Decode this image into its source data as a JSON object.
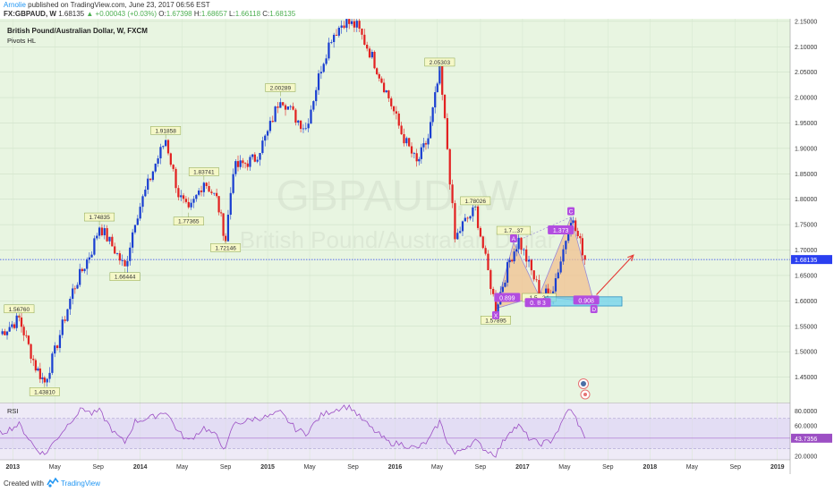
{
  "header": {
    "author": "Arnolie",
    "published_text": "published on TradingView.com, June 23, 2017 06:56 EST",
    "symbol": "FX:GBPAUD, W",
    "last": "1.68135",
    "change": "+0.00043 (+0.03%)",
    "o_label": "O:",
    "o_val": "1.67398",
    "h_label": "H:",
    "h_val": "1.68657",
    "l_label": "L:",
    "l_val": "1.66118",
    "c_label": "C:",
    "c_val": "1.68135"
  },
  "footer": {
    "created": "Created with",
    "brand": "TradingView"
  },
  "colors": {
    "bg": "#e8f5e1",
    "rsi_bg": "#eeeaf7",
    "up": "#1a3fd1",
    "down": "#e22222",
    "price_line": "#2a3ff0",
    "rsi_line": "#9c4fc4",
    "pattern_fill": "#f2c08f",
    "pattern_stroke": "#9b8ad6",
    "target_box": "#66d0ef",
    "arrow": "#e53935",
    "pivot_label_bg": "#f5f8c8",
    "pivot_label_border": "#8aa34a",
    "purple_label": "#b24de0",
    "price_tag_bg": "#2a3ff0"
  },
  "chart_data": {
    "type": "candlestick",
    "title": "British Pound/Australian Dollar, W, FXCM",
    "indicator": "Pivots HL",
    "watermark_symbol": "GBPAUD, W",
    "watermark_name": "British Pound/Australian Dollar",
    "y_range": [
      1.4,
      2.155
    ],
    "y_ticks": [
      "2.15000",
      "2.10000",
      "2.05000",
      "2.00000",
      "1.95000",
      "1.90000",
      "1.85000",
      "1.80000",
      "1.75000",
      "1.70000",
      "1.65000",
      "1.60000",
      "1.55000",
      "1.50000",
      "1.45000"
    ],
    "x_labels": [
      "2013",
      "May",
      "Sep",
      "2014",
      "May",
      "Sep",
      "2015",
      "May",
      "Sep",
      "2016",
      "May",
      "Sep",
      "2017",
      "May",
      "Sep",
      "2018",
      "May",
      "Sep",
      "2019"
    ],
    "x_label_dates": [
      2013.0,
      2013.33,
      2013.67,
      2014.0,
      2014.33,
      2014.67,
      2015.0,
      2015.33,
      2015.67,
      2016.0,
      2016.33,
      2016.67,
      2017.0,
      2017.33,
      2017.67,
      2018.0,
      2018.33,
      2018.67,
      2019.0
    ],
    "anchors": [
      [
        2012.9,
        1.535
      ],
      [
        2013.05,
        1.565
      ],
      [
        2013.18,
        1.47
      ],
      [
        2013.25,
        1.44
      ],
      [
        2013.33,
        1.5
      ],
      [
        2013.47,
        1.62
      ],
      [
        2013.62,
        1.7
      ],
      [
        2013.68,
        1.748
      ],
      [
        2013.8,
        1.7
      ],
      [
        2013.88,
        1.664
      ],
      [
        2013.96,
        1.76
      ],
      [
        2014.12,
        1.87
      ],
      [
        2014.2,
        1.918
      ],
      [
        2014.3,
        1.81
      ],
      [
        2014.38,
        1.773
      ],
      [
        2014.5,
        1.837
      ],
      [
        2014.6,
        1.8
      ],
      [
        2014.67,
        1.721
      ],
      [
        2014.73,
        1.86
      ],
      [
        2014.9,
        1.88
      ],
      [
        2015.0,
        1.93
      ],
      [
        2015.1,
        2.003
      ],
      [
        2015.22,
        1.96
      ],
      [
        2015.3,
        1.94
      ],
      [
        2015.42,
        2.06
      ],
      [
        2015.5,
        2.12
      ],
      [
        2015.6,
        2.15
      ],
      [
        2015.7,
        2.14
      ],
      [
        2015.82,
        2.08
      ],
      [
        2015.95,
        2.0
      ],
      [
        2016.05,
        1.93
      ],
      [
        2016.17,
        1.87
      ],
      [
        2016.26,
        1.92
      ],
      [
        2016.35,
        2.053
      ],
      [
        2016.41,
        1.9
      ],
      [
        2016.47,
        1.72
      ],
      [
        2016.53,
        1.75
      ],
      [
        2016.63,
        1.78
      ],
      [
        2016.71,
        1.68
      ],
      [
        2016.79,
        1.585
      ],
      [
        2016.9,
        1.68
      ],
      [
        2016.97,
        1.72
      ],
      [
        2017.05,
        1.67
      ],
      [
        2017.13,
        1.62
      ],
      [
        2017.22,
        1.61
      ],
      [
        2017.3,
        1.68
      ],
      [
        2017.38,
        1.765
      ],
      [
        2017.47,
        1.7
      ],
      [
        2017.49,
        1.681
      ]
    ],
    "pivots": [
      {
        "t": 2013.05,
        "v": 1.5676,
        "label": "1.56760",
        "pos": "above"
      },
      {
        "t": 2013.25,
        "v": 1.4381,
        "label": "1.43810",
        "pos": "below"
      },
      {
        "t": 2013.68,
        "v": 1.74835,
        "label": "1.74835",
        "pos": "above"
      },
      {
        "t": 2013.88,
        "v": 1.66444,
        "label": "1.66444",
        "pos": "below"
      },
      {
        "t": 2014.2,
        "v": 1.91858,
        "label": "1.91858",
        "pos": "above"
      },
      {
        "t": 2014.38,
        "v": 1.77365,
        "label": "1.77365",
        "pos": "below"
      },
      {
        "t": 2014.5,
        "v": 1.83741,
        "label": "1.83741",
        "pos": "above"
      },
      {
        "t": 2014.67,
        "v": 1.72146,
        "label": "1.72146",
        "pos": "below"
      },
      {
        "t": 2015.1,
        "v": 2.00289,
        "label": "2.00289",
        "pos": "above"
      },
      {
        "t": 2016.35,
        "v": 2.05303,
        "label": "2.05303",
        "pos": "above"
      },
      {
        "t": 2016.63,
        "v": 1.78026,
        "label": "1.78026",
        "pos": "above"
      },
      {
        "t": 2016.79,
        "v": 1.57895,
        "label": "1.57895",
        "pos": "below"
      }
    ],
    "pattern_points": [
      {
        "name": "X",
        "t": 2016.79,
        "v": 1.585
      },
      {
        "name": "A",
        "t": 2016.93,
        "v": 1.715
      },
      {
        "name": "B",
        "t": 2017.13,
        "v": 1.61
      },
      {
        "name": "C",
        "t": 2017.38,
        "v": 1.765
      },
      {
        "name": "D",
        "t": 2017.56,
        "v": 1.597
      }
    ],
    "pattern_labels": [
      {
        "text": "0.899",
        "t": 2016.88,
        "v": 1.605
      },
      {
        "text": "1.373",
        "t": 2017.3,
        "v": 1.738
      },
      {
        "text": "0.763",
        "t": 2017.12,
        "v": 1.595
      },
      {
        "text": "0.908",
        "t": 2017.5,
        "v": 1.6
      }
    ],
    "partial_labels": [
      {
        "text": "1.7...37",
        "t": 2016.93,
        "v": 1.722
      },
      {
        "text": "1.5...24",
        "t": 2017.13,
        "v": 1.59
      }
    ],
    "target_box": {
      "t0": 2017.18,
      "t1": 2017.78,
      "v0": 1.59,
      "v1": 1.608
    },
    "arrow": {
      "t0": 2017.58,
      "v0": 1.612,
      "t1": 2017.87,
      "v1": 1.69
    },
    "current_price": 1.68135,
    "current_price_label": "1.68135",
    "rsi": {
      "label": "RSI",
      "range": [
        15,
        90
      ],
      "ticks": [
        "80.0000",
        "60.0000",
        "20.0000"
      ],
      "tick_values": [
        80,
        60,
        20
      ],
      "bands": [
        30,
        70
      ],
      "last_label": "43.7356",
      "last_value": 43.7356,
      "anchors": [
        [
          2012.9,
          50
        ],
        [
          2013.05,
          62
        ],
        [
          2013.18,
          30
        ],
        [
          2013.25,
          22
        ],
        [
          2013.33,
          40
        ],
        [
          2013.47,
          70
        ],
        [
          2013.55,
          84
        ],
        [
          2013.62,
          76
        ],
        [
          2013.68,
          80
        ],
        [
          2013.8,
          50
        ],
        [
          2013.88,
          38
        ],
        [
          2013.96,
          66
        ],
        [
          2014.1,
          72
        ],
        [
          2014.2,
          80
        ],
        [
          2014.3,
          52
        ],
        [
          2014.38,
          40
        ],
        [
          2014.5,
          58
        ],
        [
          2014.6,
          46
        ],
        [
          2014.67,
          28
        ],
        [
          2014.73,
          62
        ],
        [
          2014.9,
          70
        ],
        [
          2015.0,
          72
        ],
        [
          2015.1,
          78
        ],
        [
          2015.22,
          56
        ],
        [
          2015.3,
          50
        ],
        [
          2015.42,
          74
        ],
        [
          2015.5,
          80
        ],
        [
          2015.6,
          86
        ],
        [
          2015.66,
          84
        ],
        [
          2015.72,
          72
        ],
        [
          2015.82,
          56
        ],
        [
          2015.95,
          38
        ],
        [
          2016.05,
          36
        ],
        [
          2016.17,
          30
        ],
        [
          2016.26,
          40
        ],
        [
          2016.35,
          66
        ],
        [
          2016.41,
          40
        ],
        [
          2016.47,
          22
        ],
        [
          2016.53,
          30
        ],
        [
          2016.63,
          40
        ],
        [
          2016.71,
          28
        ],
        [
          2016.79,
          22
        ],
        [
          2016.9,
          54
        ],
        [
          2016.97,
          60
        ],
        [
          2017.05,
          44
        ],
        [
          2017.13,
          36
        ],
        [
          2017.22,
          40
        ],
        [
          2017.3,
          60
        ],
        [
          2017.36,
          84
        ],
        [
          2017.42,
          70
        ],
        [
          2017.47,
          50
        ],
        [
          2017.49,
          43.7
        ]
      ]
    }
  }
}
